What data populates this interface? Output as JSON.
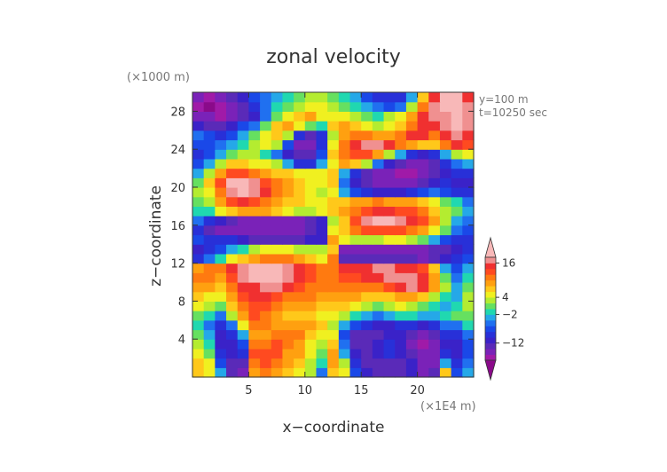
{
  "chart_data": {
    "type": "heatmap",
    "title": "zonal velocity",
    "xlabel": "x−coordinate",
    "ylabel": "z−coordinate",
    "x_unit_label": "(×1E4 m)",
    "y_unit_label": "(×1000 m)",
    "annotations": [
      "y=100 m",
      "t=10250 sec"
    ],
    "xlim": [
      0,
      25
    ],
    "ylim": [
      0,
      30
    ],
    "x_ticks": [
      5,
      10,
      15,
      20
    ],
    "x_tick_labels": [
      "5",
      "10",
      "15",
      "20"
    ],
    "y_ticks": [
      4,
      8,
      12,
      16,
      20,
      24,
      28
    ],
    "y_tick_labels": [
      "4",
      "8",
      "12",
      "16",
      "20",
      "24",
      "28"
    ],
    "colorbar": {
      "levels": [
        -20,
        -18,
        -16,
        -14,
        -12,
        -10,
        -8,
        -6,
        -4,
        -2,
        0,
        2,
        4,
        6,
        8,
        10,
        12,
        14,
        16,
        18
      ],
      "colors": [
        "#8a0a8a",
        "#a01aa8",
        "#7a22b8",
        "#5a2ab8",
        "#3a22c8",
        "#2830d8",
        "#1a48e8",
        "#2070f0",
        "#25a8e8",
        "#20d8b0",
        "#66e060",
        "#b4ec30",
        "#f0f020",
        "#ffc81a",
        "#ffa010",
        "#ff7a10",
        "#ff4a20",
        "#f03030",
        "#f09090",
        "#f8b8b8"
      ],
      "tick_values": [
        16,
        4,
        -2,
        -12
      ],
      "tick_labels": [
        "16",
        "4",
        "−2",
        "−12"
      ]
    },
    "rows_z": [
      0.5,
      1.5,
      2.5,
      3.5,
      4.5,
      5.5,
      6.5,
      7.5,
      8.5,
      9.5,
      10.5,
      11.5,
      12.5,
      13.5,
      14.5,
      15.5,
      16.5,
      17.5,
      18.5,
      19.5,
      20.5,
      21.5,
      22.5,
      23.5,
      24.5,
      25.5,
      26.5,
      27.5,
      28.5,
      29.5
    ],
    "cols_x": [
      0.5,
      1.5,
      2.5,
      3.5,
      4.5,
      5.5,
      6.5,
      7.5,
      8.5,
      9.5,
      10.5,
      11.5,
      12.5,
      13.5,
      14.5,
      15.5,
      16.5,
      17.5,
      18.5,
      19.5,
      20.5,
      21.5,
      22.5,
      23.5,
      24.5
    ],
    "values": [
      [
        6,
        4,
        -4,
        -14,
        -16,
        8,
        10,
        8,
        6,
        4,
        2,
        -6,
        6,
        4,
        -8,
        -12,
        -14,
        -14,
        -14,
        -12,
        -16,
        -14,
        6,
        -8,
        -4
      ],
      [
        6,
        4,
        -8,
        -14,
        -14,
        10,
        12,
        10,
        8,
        6,
        2,
        -2,
        8,
        2,
        -10,
        -14,
        -14,
        -14,
        -14,
        -12,
        -16,
        -16,
        -4,
        -10,
        -6
      ],
      [
        4,
        0,
        -10,
        -12,
        -10,
        12,
        12,
        12,
        8,
        8,
        4,
        0,
        8,
        -4,
        -12,
        -14,
        -12,
        -10,
        -12,
        -14,
        -16,
        -16,
        -10,
        -12,
        -8
      ],
      [
        2,
        -2,
        -12,
        -12,
        -8,
        10,
        10,
        12,
        10,
        8,
        4,
        2,
        6,
        -6,
        -14,
        -14,
        -12,
        -10,
        -12,
        -16,
        -18,
        -16,
        -12,
        -12,
        -8
      ],
      [
        0,
        -4,
        -12,
        -10,
        -4,
        8,
        8,
        10,
        10,
        10,
        6,
        4,
        4,
        -8,
        -14,
        -14,
        -14,
        -12,
        -12,
        -14,
        -16,
        -14,
        -10,
        -10,
        -6
      ],
      [
        -2,
        -6,
        -10,
        -6,
        4,
        10,
        10,
        8,
        8,
        8,
        8,
        6,
        2,
        -4,
        -8,
        -10,
        -12,
        -12,
        -10,
        -10,
        -12,
        -10,
        -6,
        -6,
        -2
      ],
      [
        0,
        -2,
        -6,
        2,
        8,
        12,
        10,
        8,
        6,
        6,
        6,
        4,
        4,
        2,
        -2,
        -4,
        -6,
        -4,
        -2,
        -2,
        -4,
        -4,
        -2,
        0,
        0
      ],
      [
        4,
        2,
        0,
        6,
        10,
        12,
        12,
        10,
        8,
        8,
        8,
        6,
        6,
        6,
        4,
        2,
        0,
        2,
        4,
        2,
        0,
        -2,
        -4,
        -2,
        2
      ],
      [
        6,
        4,
        4,
        8,
        12,
        14,
        14,
        12,
        10,
        10,
        10,
        8,
        8,
        8,
        8,
        6,
        6,
        6,
        8,
        8,
        6,
        2,
        -2,
        -4,
        2
      ],
      [
        8,
        8,
        6,
        10,
        14,
        14,
        16,
        16,
        14,
        12,
        10,
        10,
        10,
        10,
        10,
        10,
        10,
        12,
        14,
        16,
        14,
        8,
        2,
        -4,
        0
      ],
      [
        10,
        10,
        8,
        12,
        16,
        18,
        18,
        18,
        16,
        14,
        12,
        10,
        10,
        12,
        12,
        14,
        14,
        16,
        16,
        16,
        14,
        8,
        0,
        -6,
        -2
      ],
      [
        8,
        10,
        10,
        14,
        16,
        18,
        18,
        18,
        16,
        14,
        12,
        10,
        10,
        14,
        14,
        14,
        16,
        16,
        14,
        14,
        12,
        6,
        -4,
        -8,
        -4
      ],
      [
        -10,
        -6,
        -2,
        4,
        6,
        8,
        10,
        10,
        10,
        8,
        6,
        4,
        10,
        -14,
        -14,
        -14,
        -14,
        -14,
        -14,
        -14,
        -16,
        -14,
        -12,
        -10,
        -8
      ],
      [
        -12,
        -10,
        -8,
        -4,
        -2,
        2,
        4,
        4,
        4,
        2,
        2,
        2,
        6,
        -16,
        -16,
        -16,
        -16,
        -16,
        -16,
        -16,
        -16,
        -14,
        -14,
        -12,
        -10
      ],
      [
        -8,
        -10,
        -10,
        -10,
        -12,
        -14,
        -14,
        -14,
        -14,
        -14,
        -12,
        -12,
        8,
        4,
        2,
        2,
        2,
        4,
        4,
        2,
        0,
        -4,
        -8,
        -10,
        -10
      ],
      [
        -10,
        -14,
        -16,
        -16,
        -16,
        -16,
        -16,
        -16,
        -16,
        -16,
        -14,
        -12,
        4,
        6,
        10,
        12,
        12,
        12,
        12,
        10,
        8,
        4,
        0,
        -6,
        -8
      ],
      [
        -6,
        -10,
        -12,
        -14,
        -16,
        -16,
        -16,
        -16,
        -16,
        -16,
        -14,
        -12,
        2,
        6,
        12,
        16,
        18,
        18,
        16,
        14,
        12,
        8,
        2,
        -4,
        -6
      ],
      [
        -2,
        -2,
        4,
        6,
        8,
        8,
        8,
        6,
        4,
        2,
        2,
        4,
        6,
        8,
        10,
        12,
        14,
        14,
        12,
        12,
        10,
        6,
        2,
        0,
        -4
      ],
      [
        0,
        2,
        8,
        12,
        14,
        12,
        10,
        8,
        6,
        6,
        4,
        4,
        6,
        6,
        8,
        8,
        10,
        8,
        8,
        8,
        6,
        4,
        0,
        -2,
        -6
      ],
      [
        2,
        4,
        10,
        16,
        18,
        16,
        14,
        10,
        8,
        6,
        4,
        2,
        4,
        -4,
        -8,
        -10,
        -12,
        -12,
        -12,
        -10,
        -8,
        -6,
        -8,
        -10,
        -10
      ],
      [
        0,
        6,
        12,
        18,
        18,
        16,
        12,
        10,
        8,
        6,
        4,
        4,
        6,
        -6,
        -12,
        -14,
        -16,
        -16,
        -16,
        -16,
        -14,
        -12,
        -10,
        -12,
        -12
      ],
      [
        -4,
        2,
        8,
        12,
        12,
        10,
        8,
        6,
        6,
        4,
        4,
        4,
        6,
        -4,
        -10,
        -14,
        -16,
        -16,
        -18,
        -18,
        -16,
        -14,
        -12,
        -10,
        -10
      ],
      [
        -8,
        -4,
        2,
        6,
        6,
        4,
        4,
        2,
        -4,
        -10,
        -10,
        -4,
        4,
        8,
        6,
        2,
        -6,
        -12,
        -14,
        -16,
        -16,
        -14,
        -10,
        -6,
        -4
      ],
      [
        -10,
        -8,
        -4,
        0,
        2,
        2,
        -2,
        -6,
        -12,
        -14,
        -14,
        -8,
        6,
        10,
        12,
        12,
        8,
        2,
        -4,
        -10,
        -12,
        -10,
        -4,
        2,
        4
      ],
      [
        -8,
        -8,
        -6,
        -4,
        -2,
        2,
        4,
        2,
        -8,
        -16,
        -16,
        -10,
        4,
        10,
        14,
        16,
        16,
        14,
        10,
        8,
        6,
        6,
        10,
        14,
        12
      ],
      [
        -6,
        -8,
        -10,
        -8,
        -4,
        0,
        4,
        6,
        2,
        -10,
        -14,
        -10,
        2,
        8,
        10,
        10,
        8,
        8,
        10,
        14,
        14,
        10,
        14,
        16,
        14
      ],
      [
        -12,
        -14,
        -14,
        -12,
        -8,
        -6,
        0,
        6,
        8,
        4,
        0,
        -2,
        6,
        8,
        6,
        4,
        2,
        4,
        6,
        10,
        14,
        14,
        16,
        18,
        16
      ],
      [
        -16,
        -16,
        -18,
        -16,
        -14,
        -12,
        -6,
        0,
        4,
        6,
        8,
        4,
        4,
        4,
        2,
        0,
        -2,
        2,
        4,
        8,
        14,
        16,
        16,
        18,
        16
      ],
      [
        -18,
        -20,
        -18,
        -16,
        -14,
        -10,
        -6,
        -2,
        0,
        2,
        4,
        4,
        2,
        0,
        -2,
        -4,
        -6,
        -8,
        -6,
        2,
        10,
        16,
        18,
        18,
        16
      ],
      [
        -16,
        -18,
        -16,
        -14,
        -12,
        -8,
        -6,
        -4,
        -2,
        0,
        2,
        2,
        0,
        -2,
        -4,
        -8,
        -10,
        -10,
        -10,
        -4,
        6,
        14,
        18,
        18,
        14
      ]
    ]
  }
}
